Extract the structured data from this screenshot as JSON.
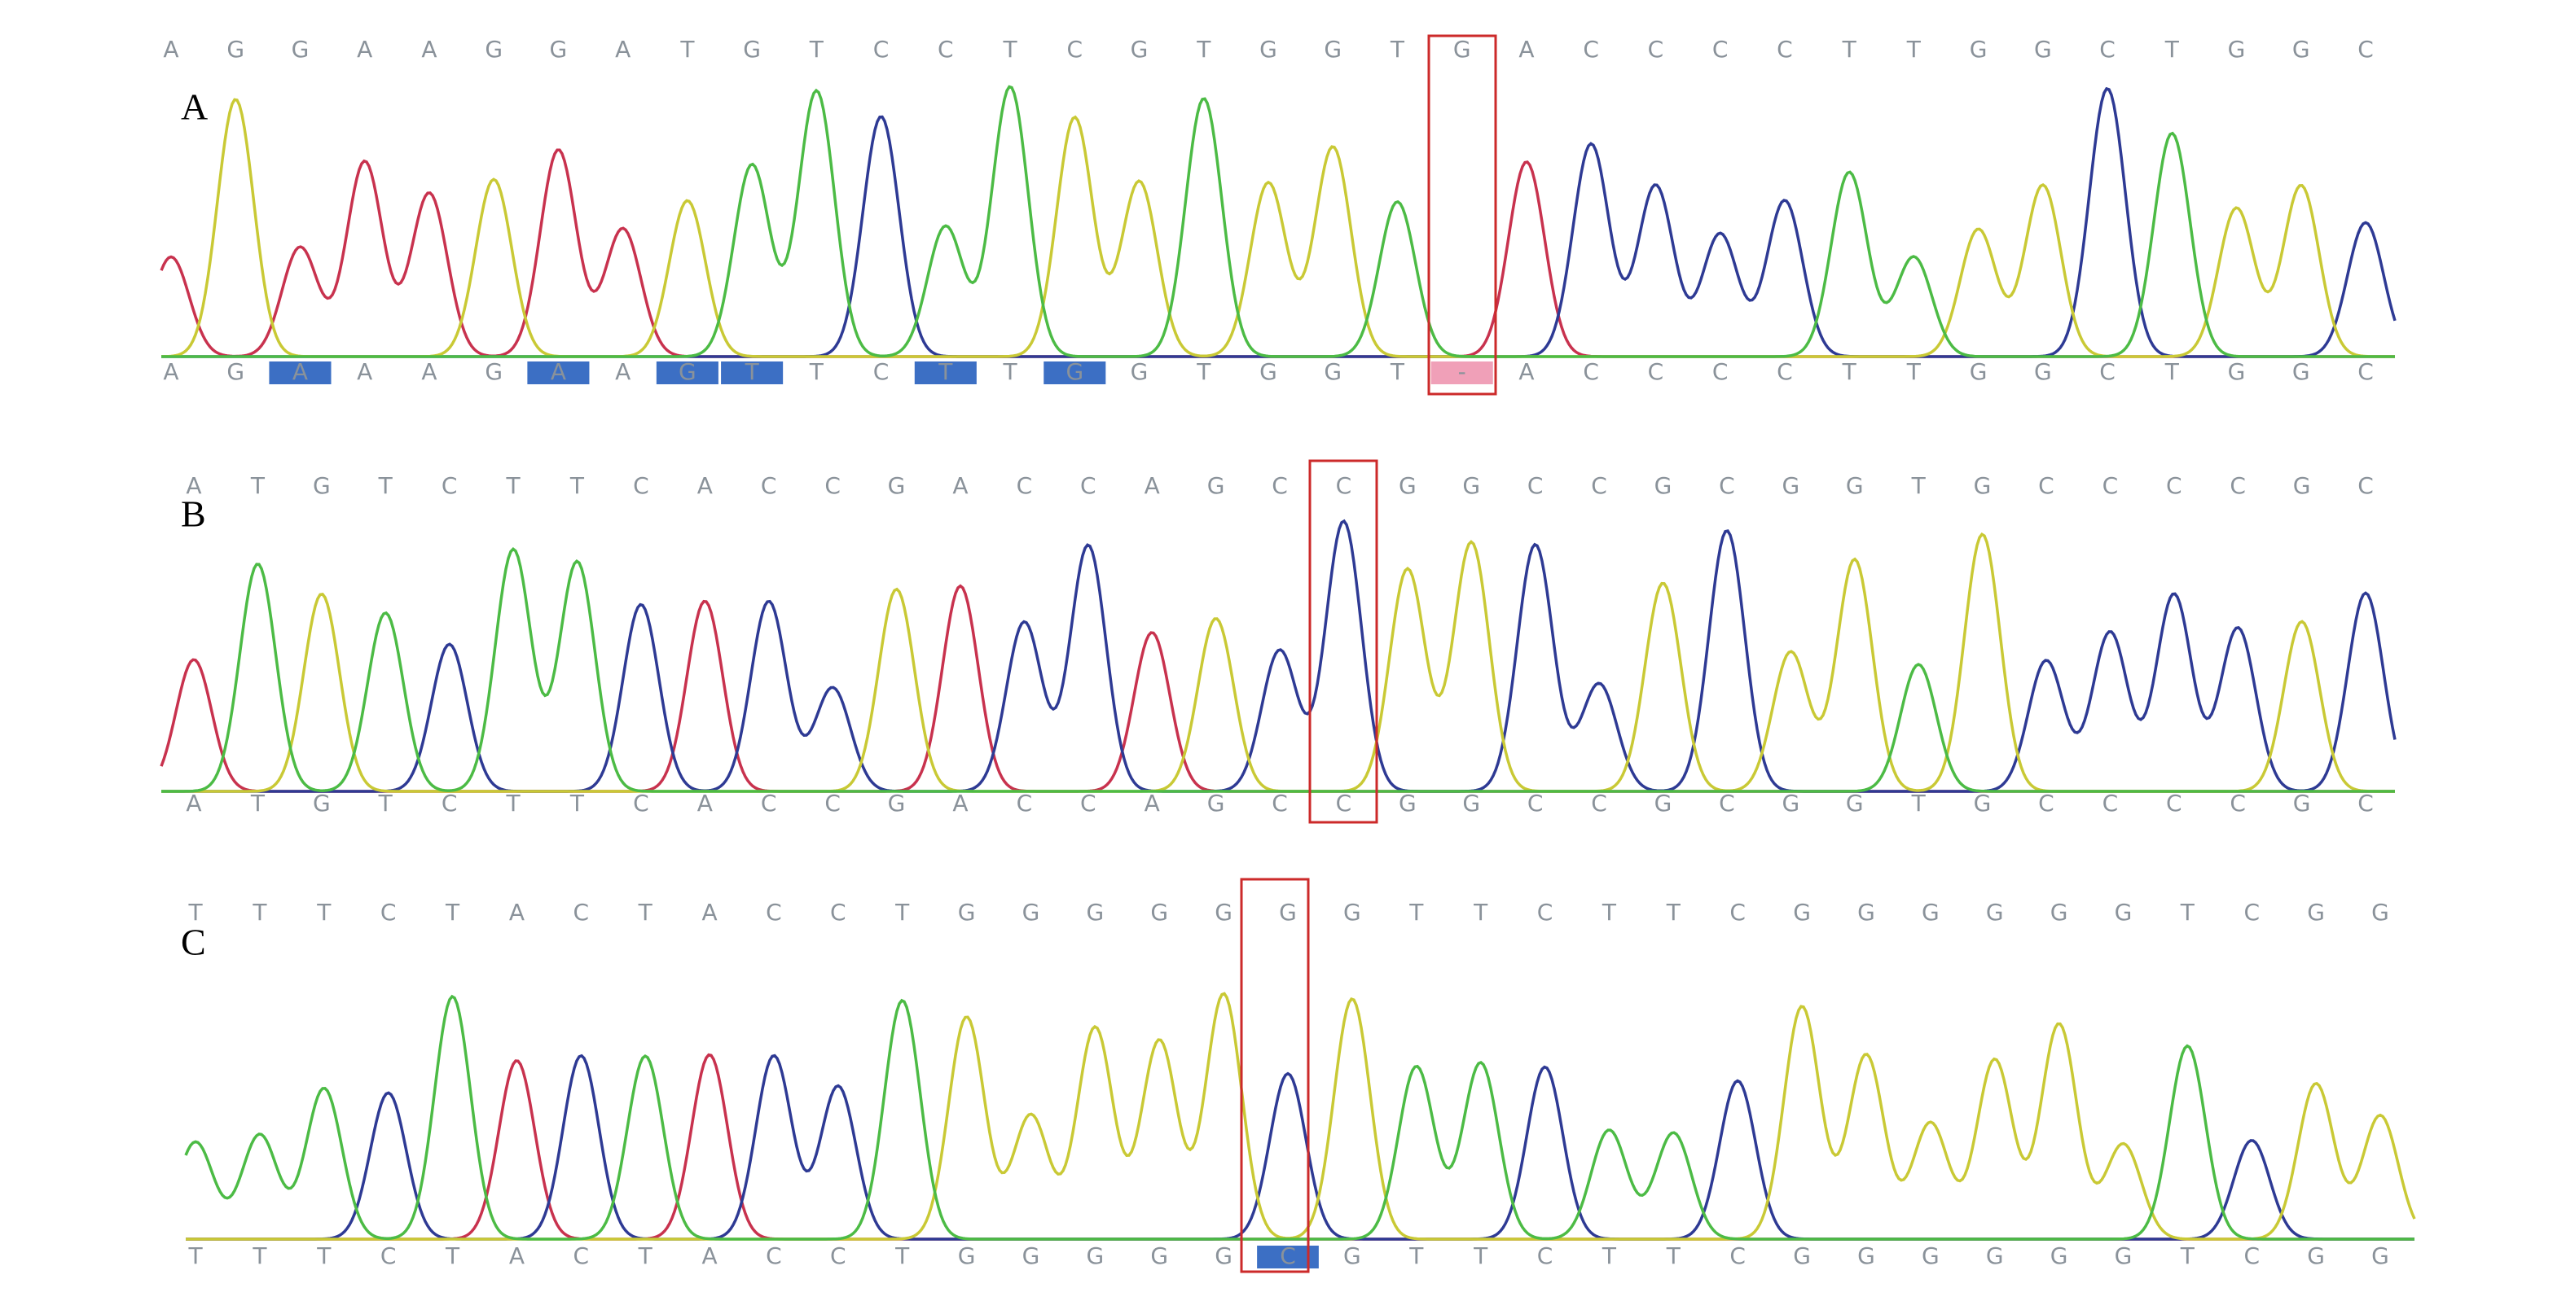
{
  "panels": [
    {
      "label": "A",
      "top_sequence": [
        "A",
        "G",
        "G",
        "A",
        "A",
        "G",
        "G",
        "A",
        "T",
        "G",
        "T",
        "C",
        "C",
        "T",
        "C",
        "G",
        "T",
        "G",
        "G",
        "T",
        "G",
        "A",
        "C",
        "C",
        "C",
        "C",
        "T",
        "T",
        "G",
        "G",
        "C",
        "T",
        "G",
        "G",
        "C"
      ],
      "bottom_sequence": [
        "A",
        "G",
        "A",
        "A",
        "A",
        "G",
        "A",
        "A",
        "G",
        "T",
        "T",
        "C",
        "T",
        "T",
        "G",
        "G",
        "T",
        "G",
        "G",
        "T",
        "-",
        "A",
        "C",
        "C",
        "C",
        "C",
        "T",
        "T",
        "G",
        "G",
        "C",
        "T",
        "G",
        "G",
        "C"
      ]
    },
    {
      "label": "B",
      "top_sequence": [
        "A",
        "T",
        "G",
        "T",
        "C",
        "T",
        "T",
        "C",
        "A",
        "C",
        "C",
        "G",
        "A",
        "C",
        "C",
        "A",
        "G",
        "C",
        "C",
        "G",
        "G",
        "C",
        "C",
        "G",
        "C",
        "G",
        "G",
        "T",
        "G",
        "C",
        "C",
        "C",
        "C",
        "G",
        "C"
      ],
      "bottom_sequence": [
        "A",
        "T",
        "G",
        "T",
        "C",
        "T",
        "T",
        "C",
        "A",
        "C",
        "C",
        "G",
        "A",
        "C",
        "C",
        "A",
        "G",
        "C",
        "C",
        "G",
        "G",
        "C",
        "C",
        "G",
        "C",
        "G",
        "G",
        "T",
        "G",
        "C",
        "C",
        "C",
        "C",
        "G",
        "C"
      ]
    },
    {
      "label": "C",
      "top_sequence": [
        "T",
        "T",
        "T",
        "C",
        "T",
        "A",
        "C",
        "T",
        "A",
        "C",
        "C",
        "T",
        "G",
        "G",
        "G",
        "G",
        "G",
        "G",
        "G",
        "T",
        "T",
        "C",
        "T",
        "T",
        "C",
        "G",
        "G",
        "G",
        "G",
        "G",
        "G",
        "T",
        "C",
        "G",
        "G"
      ],
      "bottom_sequence": [
        "T",
        "T",
        "T",
        "C",
        "T",
        "A",
        "C",
        "T",
        "A",
        "C",
        "C",
        "T",
        "G",
        "G",
        "G",
        "G",
        "G",
        "C",
        "G",
        "T",
        "T",
        "C",
        "T",
        "T",
        "C",
        "G",
        "G",
        "G",
        "G",
        "G",
        "G",
        "T",
        "C",
        "G",
        "G"
      ]
    }
  ]
}
